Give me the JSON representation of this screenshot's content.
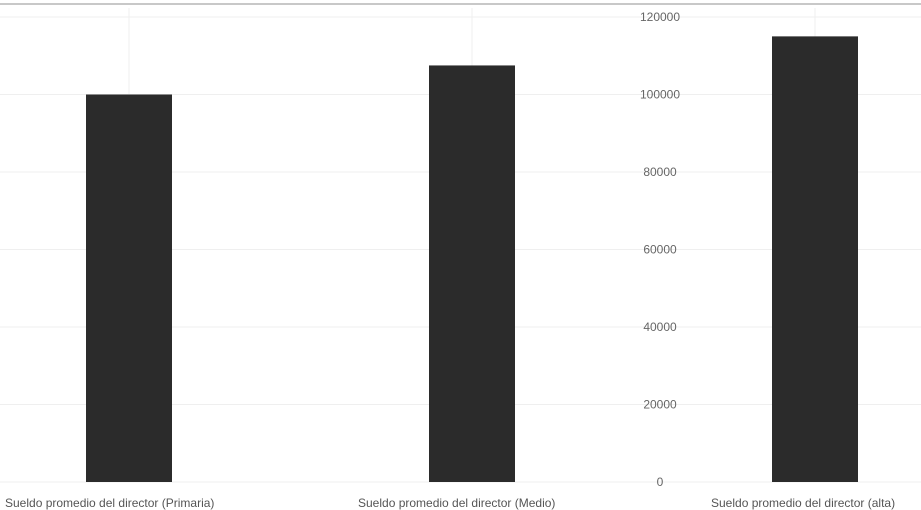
{
  "chart_data": {
    "type": "bar",
    "categories": [
      "Sueldo promedio del director (Primaria)",
      "Sueldo promedio del director (Medio)",
      "Sueldo promedio del director (alta)"
    ],
    "values": [
      100000,
      107500,
      115000
    ],
    "title": "",
    "xlabel": "",
    "ylabel": "",
    "ylim": [
      0,
      120000
    ],
    "yticks": [
      "0",
      "20000",
      "40000",
      "60000",
      "80000",
      "100000",
      "120000"
    ],
    "bar_color": "#2b2b2b",
    "grid": true,
    "legend": "none"
  }
}
